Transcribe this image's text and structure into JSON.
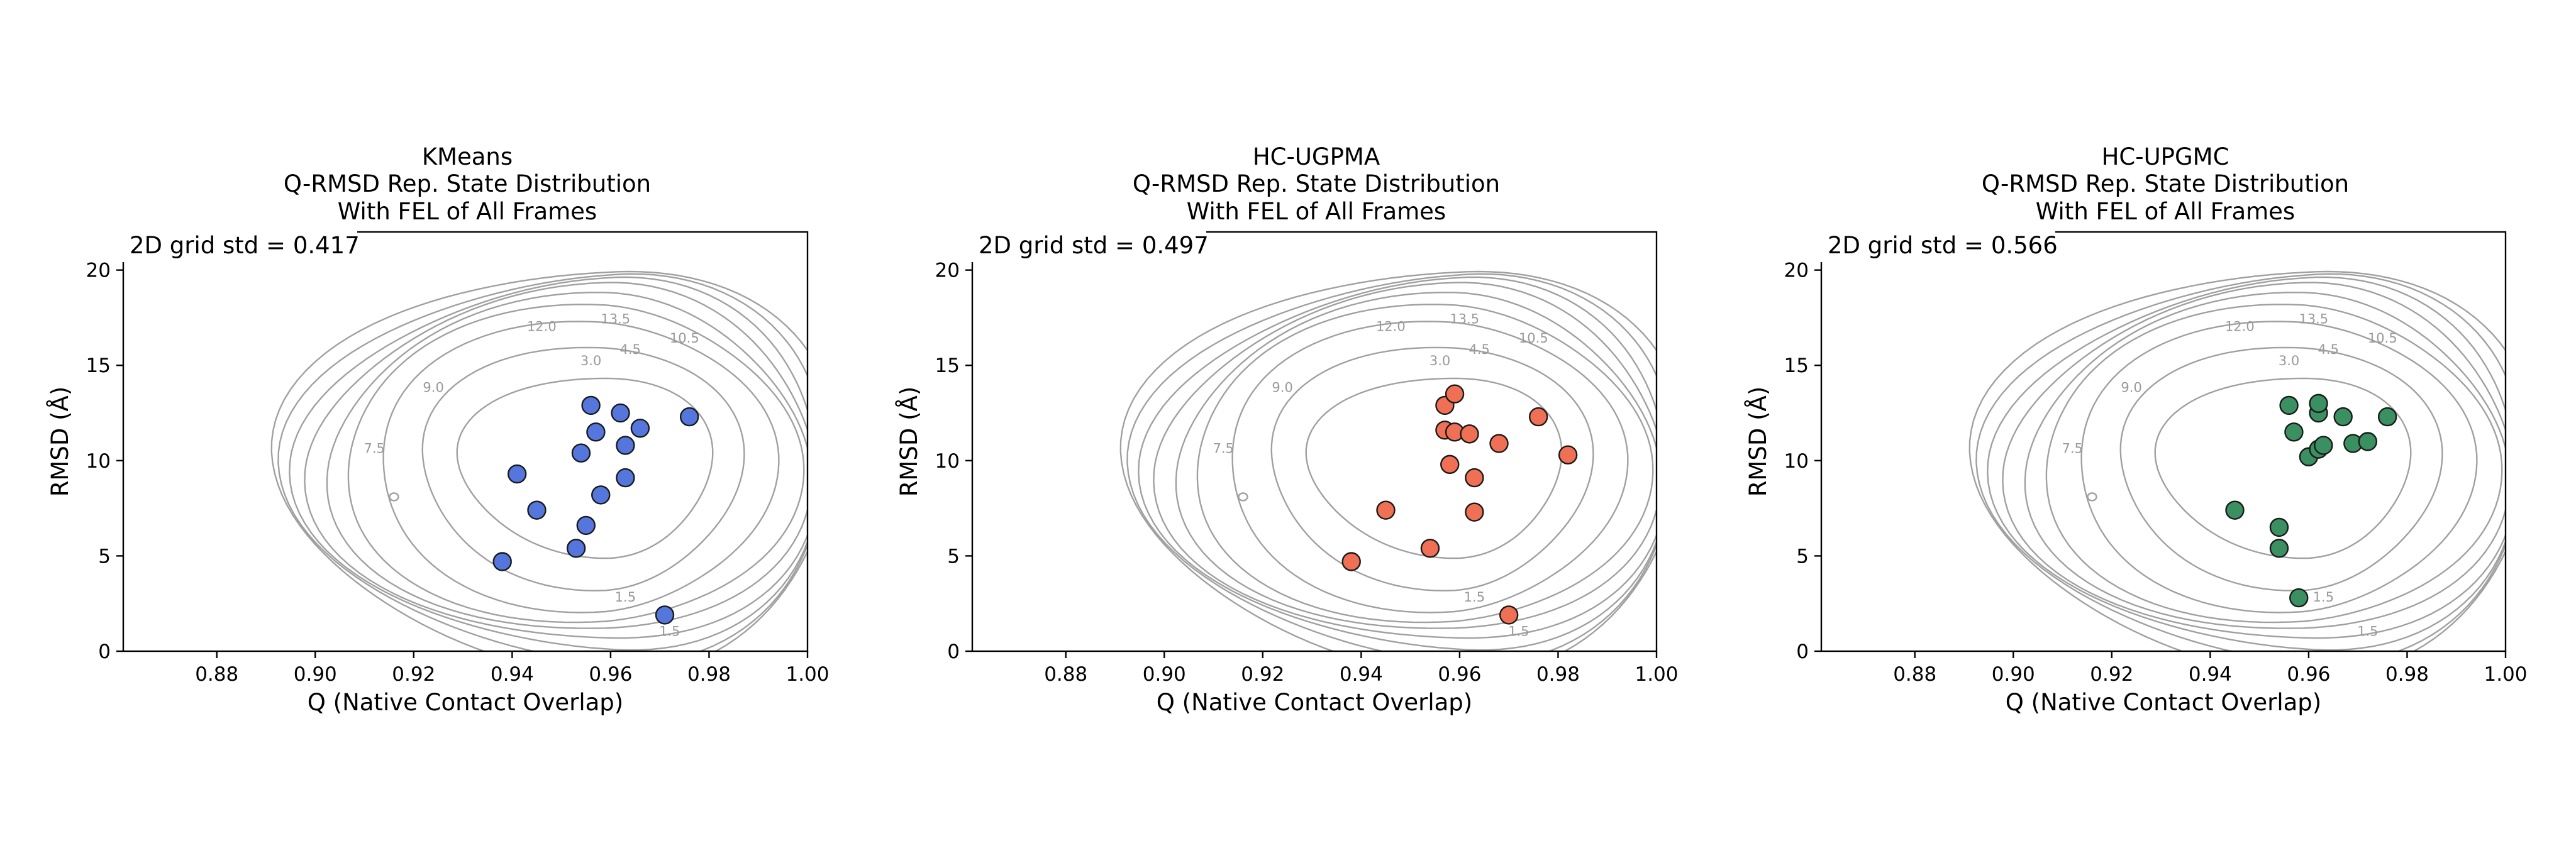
{
  "chart_data": [
    {
      "type": "scatter",
      "panel": "left",
      "title_lines": [
        "KMeans",
        "Q-RMSD Rep. State Distribution",
        "With FEL of All Frames"
      ],
      "xlabel": "Q (Native Contact Overlap)",
      "ylabel": "RMSD (Å)",
      "xlim": [
        0.861,
        1.0
      ],
      "ylim": [
        0,
        22
      ],
      "xticks": [
        0.88,
        0.9,
        0.92,
        0.94,
        0.96,
        0.98,
        1.0
      ],
      "xtick_labels": [
        "0.88",
        "0.90",
        "0.92",
        "0.94",
        "0.96",
        "0.98",
        "1.00"
      ],
      "yticks": [
        0,
        5,
        10,
        15,
        20
      ],
      "ytick_labels": [
        "0",
        "5",
        "10",
        "15",
        "20"
      ],
      "annotation": "2D grid std = 0.417",
      "color": "#5577dd",
      "series": [
        {
          "name": "KMeans representative states",
          "points": [
            [
              0.938,
              4.7
            ],
            [
              0.941,
              9.3
            ],
            [
              0.945,
              7.4
            ],
            [
              0.953,
              5.4
            ],
            [
              0.954,
              10.4
            ],
            [
              0.955,
              6.6
            ],
            [
              0.956,
              12.9
            ],
            [
              0.957,
              11.5
            ],
            [
              0.958,
              8.2
            ],
            [
              0.962,
              12.5
            ],
            [
              0.963,
              10.8
            ],
            [
              0.963,
              9.1
            ],
            [
              0.966,
              11.7
            ],
            [
              0.971,
              1.9
            ],
            [
              0.976,
              12.3
            ]
          ]
        }
      ]
    },
    {
      "type": "scatter",
      "panel": "middle",
      "title_lines": [
        "HC-UGPMA",
        "Q-RMSD Rep. State Distribution",
        "With FEL of All Frames"
      ],
      "xlabel": "Q (Native Contact Overlap)",
      "ylabel": "RMSD (Å)",
      "xlim": [
        0.861,
        1.0
      ],
      "ylim": [
        0,
        22
      ],
      "xticks": [
        0.88,
        0.9,
        0.92,
        0.94,
        0.96,
        0.98,
        1.0
      ],
      "xtick_labels": [
        "0.88",
        "0.90",
        "0.92",
        "0.94",
        "0.96",
        "0.98",
        "1.00"
      ],
      "yticks": [
        0,
        5,
        10,
        15,
        20
      ],
      "ytick_labels": [
        "0",
        "5",
        "10",
        "15",
        "20"
      ],
      "annotation": "2D grid std = 0.497",
      "color": "#f07055",
      "series": [
        {
          "name": "HC-UGPMA representative states",
          "points": [
            [
              0.938,
              4.7
            ],
            [
              0.945,
              7.4
            ],
            [
              0.954,
              5.4
            ],
            [
              0.957,
              12.9
            ],
            [
              0.957,
              11.6
            ],
            [
              0.958,
              9.8
            ],
            [
              0.959,
              11.5
            ],
            [
              0.959,
              13.5
            ],
            [
              0.962,
              11.4
            ],
            [
              0.963,
              9.1
            ],
            [
              0.963,
              7.3
            ],
            [
              0.968,
              10.9
            ],
            [
              0.97,
              1.9
            ],
            [
              0.976,
              12.3
            ],
            [
              0.982,
              10.3
            ]
          ]
        }
      ]
    },
    {
      "type": "scatter",
      "panel": "right",
      "title_lines": [
        "HC-UPGMC",
        "Q-RMSD Rep. State Distribution",
        "With FEL of All Frames"
      ],
      "xlabel": "Q (Native Contact Overlap)",
      "ylabel": "RMSD (Å)",
      "xlim": [
        0.861,
        1.0
      ],
      "ylim": [
        0,
        22
      ],
      "xticks": [
        0.88,
        0.9,
        0.92,
        0.94,
        0.96,
        0.98,
        1.0
      ],
      "xtick_labels": [
        "0.88",
        "0.90",
        "0.92",
        "0.94",
        "0.96",
        "0.98",
        "1.00"
      ],
      "yticks": [
        0,
        5,
        10,
        15,
        20
      ],
      "ytick_labels": [
        "0",
        "5",
        "10",
        "15",
        "20"
      ],
      "annotation": "2D grid std = 0.566",
      "color": "#3a9060",
      "series": [
        {
          "name": "HC-UPGMC representative states",
          "points": [
            [
              0.945,
              7.4
            ],
            [
              0.954,
              5.4
            ],
            [
              0.954,
              6.5
            ],
            [
              0.956,
              12.9
            ],
            [
              0.957,
              11.5
            ],
            [
              0.958,
              2.8
            ],
            [
              0.96,
              10.2
            ],
            [
              0.962,
              12.5
            ],
            [
              0.962,
              13.0
            ],
            [
              0.962,
              10.6
            ],
            [
              0.963,
              10.8
            ],
            [
              0.967,
              12.3
            ],
            [
              0.969,
              10.9
            ],
            [
              0.972,
              11.0
            ],
            [
              0.976,
              12.3
            ]
          ]
        }
      ]
    }
  ],
  "fel_contour_levels": [
    "1.5",
    "3.0",
    "4.5",
    "6.0",
    "7.5",
    "9.0",
    "10.5",
    "12.0",
    "13.5"
  ],
  "colors": {
    "contour": "#a0a0a0",
    "contour_label": "#9a9a9a",
    "point_edge": "#1a1a1a"
  }
}
